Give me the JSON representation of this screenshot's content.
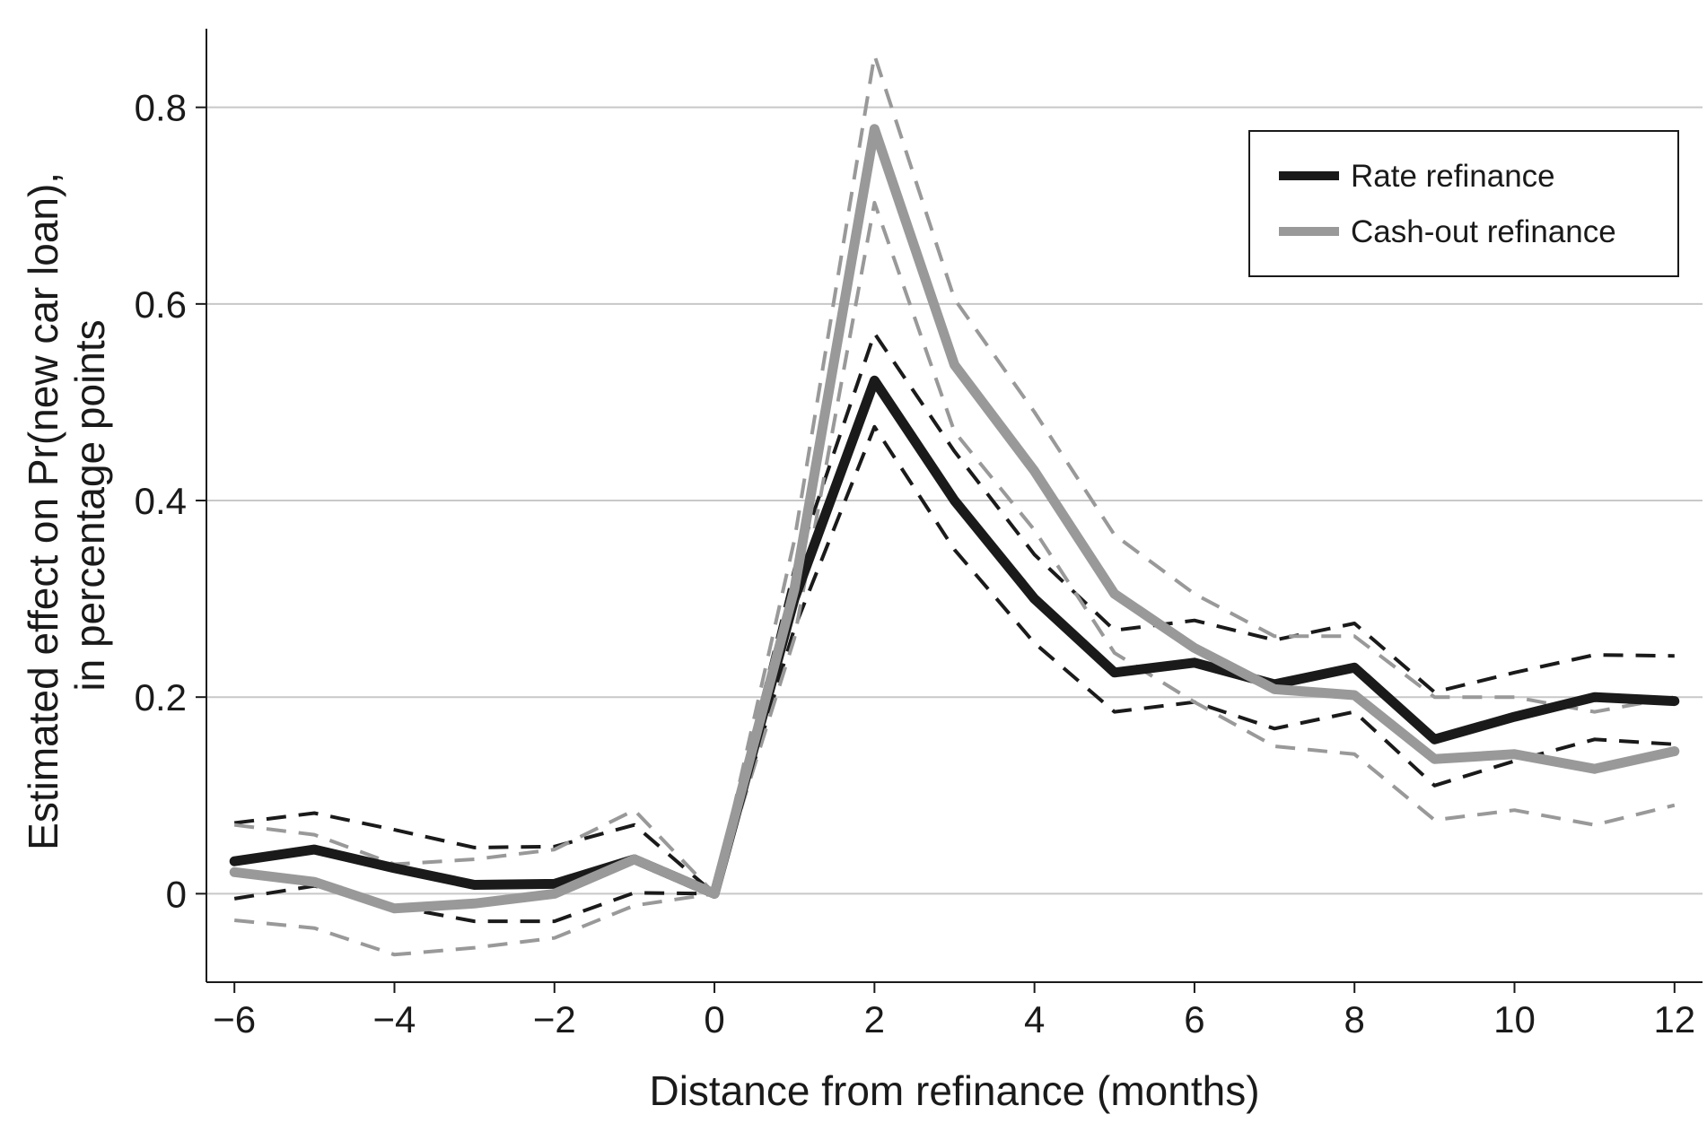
{
  "chart_data": {
    "type": "line",
    "xlabel": "Distance from refinance (months)",
    "ylabel_line1": "Estimated effect on Pr(new car loan),",
    "ylabel_line2": "in percentage points",
    "xlim": [
      -6.35,
      12.35
    ],
    "ylim": [
      -0.09,
      0.88
    ],
    "x_ticks": [
      -6,
      -4,
      -2,
      0,
      2,
      4,
      6,
      8,
      10,
      12
    ],
    "x_tick_labels": [
      "−6",
      "−4",
      "−2",
      "0",
      "2",
      "4",
      "6",
      "8",
      "10",
      "12"
    ],
    "y_ticks": [
      0,
      0.2,
      0.4,
      0.6,
      0.8
    ],
    "y_tick_labels": [
      "0",
      "0.2",
      "0.4",
      "0.6",
      "0.8"
    ],
    "grid": "horizontal",
    "legend_position": "top-right",
    "x": [
      -6,
      -5,
      -4,
      -3,
      -2,
      -1,
      0,
      1,
      2,
      3,
      4,
      5,
      6,
      7,
      8,
      9,
      10,
      11,
      12
    ],
    "series": [
      {
        "name": "Rate refinance",
        "color": "#1a1a1a",
        "values": [
          0.033,
          0.045,
          0.026,
          0.009,
          0.01,
          0.035,
          0.0,
          0.3,
          0.522,
          0.4,
          0.3,
          0.225,
          0.235,
          0.213,
          0.23,
          0.157,
          0.18,
          0.2,
          0.196
        ],
        "ci_upper": [
          0.072,
          0.082,
          0.065,
          0.047,
          0.048,
          0.07,
          0.0,
          0.33,
          0.57,
          0.45,
          0.345,
          0.268,
          0.278,
          0.258,
          0.275,
          0.205,
          0.225,
          0.243,
          0.242
        ],
        "ci_lower": [
          -0.005,
          0.008,
          -0.013,
          -0.028,
          -0.028,
          0.001,
          0.0,
          0.27,
          0.475,
          0.35,
          0.255,
          0.185,
          0.195,
          0.168,
          0.185,
          0.11,
          0.135,
          0.157,
          0.152
        ]
      },
      {
        "name": "Cash-out refinance",
        "color": "#999999",
        "values": [
          0.022,
          0.012,
          -0.015,
          -0.01,
          0.0,
          0.035,
          0.0,
          0.31,
          0.778,
          0.538,
          0.43,
          0.305,
          0.25,
          0.208,
          0.202,
          0.137,
          0.142,
          0.127,
          0.145
        ],
        "ci_upper": [
          0.07,
          0.06,
          0.03,
          0.035,
          0.045,
          0.085,
          0.0,
          0.36,
          0.853,
          0.605,
          0.49,
          0.365,
          0.305,
          0.262,
          0.262,
          0.2,
          0.2,
          0.185,
          0.2
        ],
        "ci_lower": [
          -0.027,
          -0.035,
          -0.062,
          -0.055,
          -0.045,
          -0.012,
          0.0,
          0.26,
          0.703,
          0.47,
          0.37,
          0.245,
          0.195,
          0.15,
          0.142,
          0.075,
          0.085,
          0.07,
          0.09
        ]
      }
    ]
  }
}
